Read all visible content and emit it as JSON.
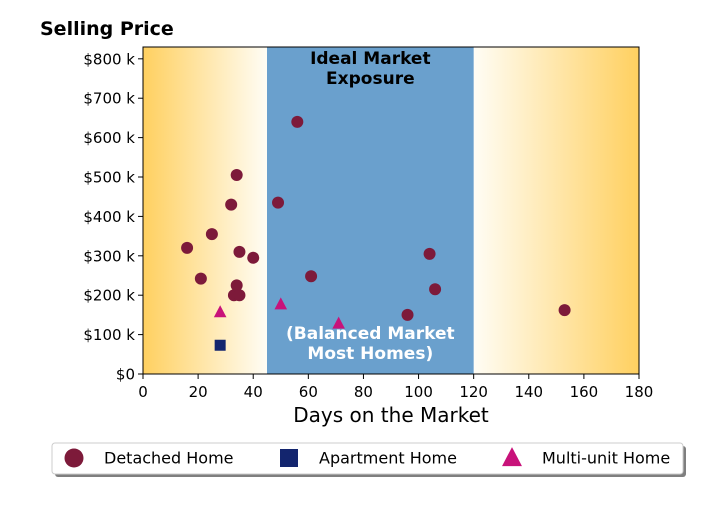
{
  "chart_data": {
    "type": "scatter",
    "title": "Selling Price",
    "xlabel": "Days on the Market",
    "ylabel": "",
    "xlim": [
      0,
      180
    ],
    "ylim": [
      0,
      830000
    ],
    "x_ticks": [
      0,
      20,
      40,
      60,
      80,
      100,
      120,
      140,
      160,
      180
    ],
    "x_tick_labels": [
      "0",
      "20",
      "40",
      "60",
      "80",
      "100",
      "120",
      "140",
      "160",
      "180"
    ],
    "y_ticks": [
      0,
      100000,
      200000,
      300000,
      400000,
      500000,
      600000,
      700000,
      800000
    ],
    "y_tick_labels": [
      "$0",
      "$100 k",
      "$200 k",
      "$300 k",
      "$400 k",
      "$500 k",
      "$600 k",
      "$700 k",
      "$800 k"
    ],
    "grid": false,
    "ideal_zone": {
      "x_range": [
        45,
        120
      ],
      "label_top": [
        "Ideal Market",
        "Exposure"
      ],
      "label_bottom": [
        "(Balanced Market",
        "Most Homes)"
      ],
      "color": "#6aa0cd"
    },
    "background_gradient": {
      "edge_color": "#ffd060",
      "inner_color": "#fffdf5"
    },
    "legend_position": "bottom",
    "series": [
      {
        "name": "Detached Home",
        "marker": "circle",
        "color": "#7d1a3a",
        "x": [
          16,
          21,
          25,
          32,
          33,
          34,
          34,
          35,
          35,
          40,
          49,
          56,
          61,
          96,
          104,
          106,
          153
        ],
        "y": [
          320000,
          242000,
          355000,
          430000,
          200000,
          505000,
          225000,
          310000,
          200000,
          295000,
          435000,
          640000,
          248000,
          150000,
          305000,
          215000,
          162000
        ]
      },
      {
        "name": "Apartment Home",
        "marker": "square",
        "color": "#13256e",
        "x": [
          28
        ],
        "y": [
          73000
        ]
      },
      {
        "name": "Multi-unit Home",
        "marker": "triangle",
        "color": "#c8127a",
        "x": [
          28,
          50,
          71
        ],
        "y": [
          157000,
          177000,
          128000
        ]
      }
    ]
  }
}
